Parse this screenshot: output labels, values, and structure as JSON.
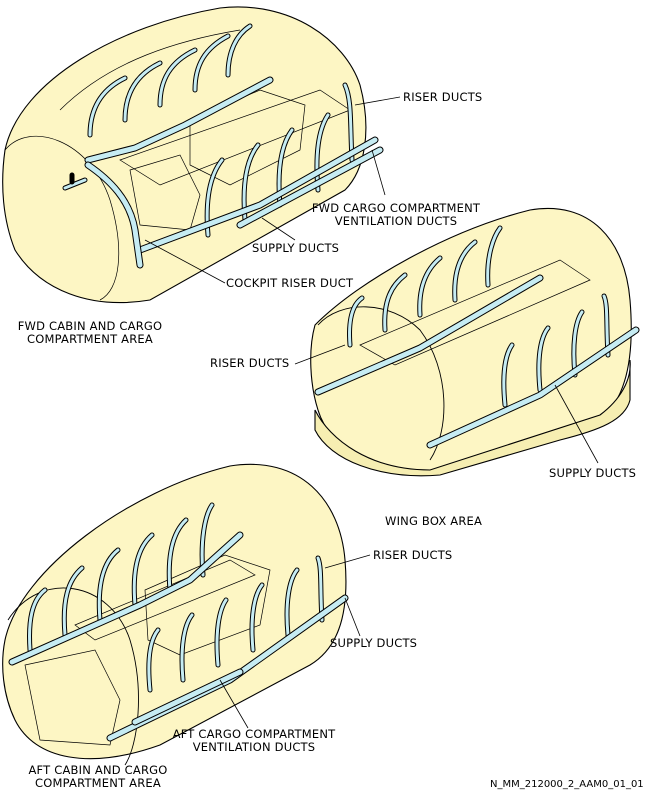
{
  "labels": {
    "riser_ducts_fwd": "RISER DUCTS",
    "fwd_cargo_vent_line1": "FWD CARGO COMPARTMENT",
    "fwd_cargo_vent_line2": "VENTILATION DUCTS",
    "supply_ducts_fwd": "SUPPLY DUCTS",
    "cockpit_riser_duct": "COCKPIT RISER DUCT",
    "fwd_area_line1": "FWD CABIN AND CARGO",
    "fwd_area_line2": "COMPARTMENT AREA",
    "riser_ducts_wing": "RISER DUCTS",
    "supply_ducts_wing": "SUPPLY DUCTS",
    "wing_box_area": "WING BOX AREA",
    "riser_ducts_aft": "RISER DUCTS",
    "supply_ducts_aft": "SUPPLY DUCTS",
    "aft_cargo_vent_line1": "AFT CARGO COMPARTMENT",
    "aft_cargo_vent_line2": "VENTILATION DUCTS",
    "aft_area_line1": "AFT CABIN AND CARGO",
    "aft_area_line2": "COMPARTMENT AREA",
    "figure_id": "N_MM_212000_2_AAM0_01_01"
  },
  "colors": {
    "fuselage_fill": "#fdf6c4",
    "duct_fill": "#c6ecf3",
    "outline": "#000000"
  }
}
